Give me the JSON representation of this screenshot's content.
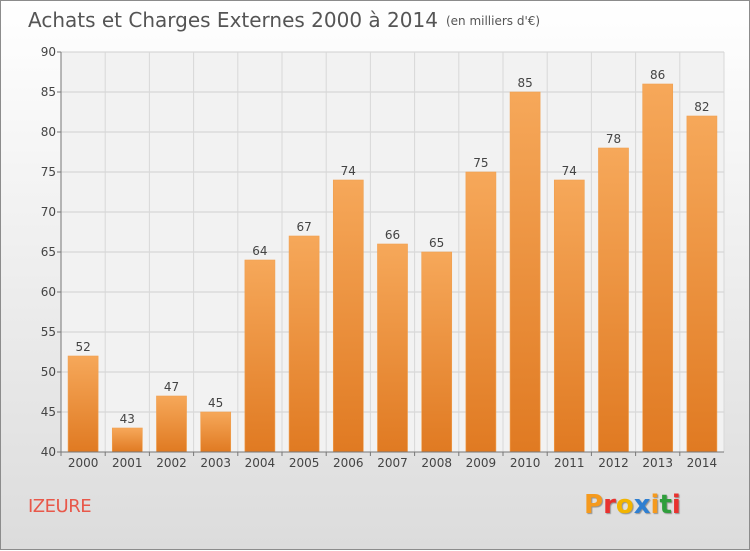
{
  "chart_data": {
    "type": "bar",
    "title": "Achats et Charges Externes 2000 à 2014",
    "subtitle": "(en milliers d'€)",
    "categories": [
      "2000",
      "2001",
      "2002",
      "2003",
      "2004",
      "2005",
      "2006",
      "2007",
      "2008",
      "2009",
      "2010",
      "2011",
      "2012",
      "2013",
      "2014"
    ],
    "values": [
      52,
      43,
      47,
      45,
      64,
      67,
      74,
      66,
      65,
      75,
      85,
      74,
      78,
      86,
      82
    ],
    "ylim": [
      40,
      90
    ],
    "yticks": [
      40,
      45,
      50,
      55,
      60,
      65,
      70,
      75,
      80,
      85,
      90
    ],
    "grid": true,
    "colors": {
      "bar_top": "#f6a85a",
      "bar_bottom": "#e07a22",
      "bar_edge": "#f0a050"
    }
  },
  "footer": {
    "commune": "IZEURE",
    "brand": "Proxiti",
    "brand_colors": [
      "#f59a1e",
      "#e8322f",
      "#f2b400",
      "#2f7fd1",
      "#f59a1e",
      "#2f9e3c",
      "#e8322f"
    ]
  }
}
